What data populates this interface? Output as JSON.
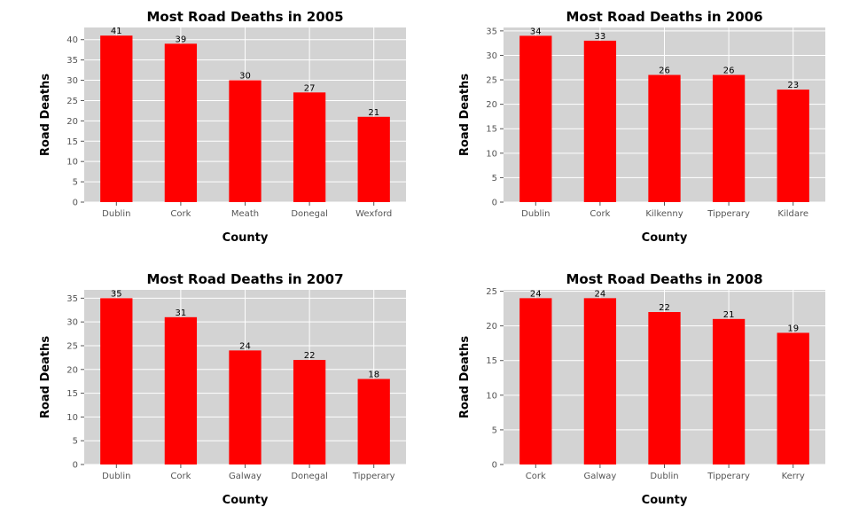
{
  "colors": {
    "bar": "#ff0000",
    "plot_bg": "#d3d3d3",
    "grid": "#ffffff"
  },
  "chart_data": [
    {
      "type": "bar",
      "title": "Most Road Deaths in 2005",
      "xlabel": "County",
      "ylabel": "Road Deaths",
      "categories": [
        "Dublin",
        "Cork",
        "Meath",
        "Donegal",
        "Wexford"
      ],
      "values": [
        41,
        39,
        30,
        27,
        21
      ],
      "ylim": [
        0,
        43
      ],
      "yticks": [
        0,
        5,
        10,
        15,
        20,
        25,
        30,
        35,
        40
      ],
      "grid": true,
      "legend": false
    },
    {
      "type": "bar",
      "title": "Most Road Deaths in 2006",
      "xlabel": "County",
      "ylabel": "Road Deaths",
      "categories": [
        "Dublin",
        "Cork",
        "Kilkenny",
        "Tipperary",
        "Kildare"
      ],
      "values": [
        34,
        33,
        26,
        26,
        23
      ],
      "ylim": [
        0,
        35.7
      ],
      "yticks": [
        0,
        5,
        10,
        15,
        20,
        25,
        30,
        35
      ],
      "grid": true,
      "legend": false
    },
    {
      "type": "bar",
      "title": "Most Road Deaths in 2007",
      "xlabel": "County",
      "ylabel": "Road Deaths",
      "categories": [
        "Dublin",
        "Cork",
        "Galway",
        "Donegal",
        "Tipperary"
      ],
      "values": [
        35,
        31,
        24,
        22,
        18
      ],
      "ylim": [
        0,
        36.75
      ],
      "yticks": [
        0,
        5,
        10,
        15,
        20,
        25,
        30,
        35
      ],
      "grid": true,
      "legend": false
    },
    {
      "type": "bar",
      "title": "Most Road Deaths in 2008",
      "xlabel": "County",
      "ylabel": "Road Deaths",
      "categories": [
        "Cork",
        "Galway",
        "Dublin",
        "Tipperary",
        "Kerry"
      ],
      "values": [
        24,
        24,
        22,
        21,
        19
      ],
      "ylim": [
        0,
        25.2
      ],
      "yticks": [
        0,
        5,
        10,
        15,
        20,
        25
      ],
      "grid": true,
      "legend": false
    }
  ]
}
